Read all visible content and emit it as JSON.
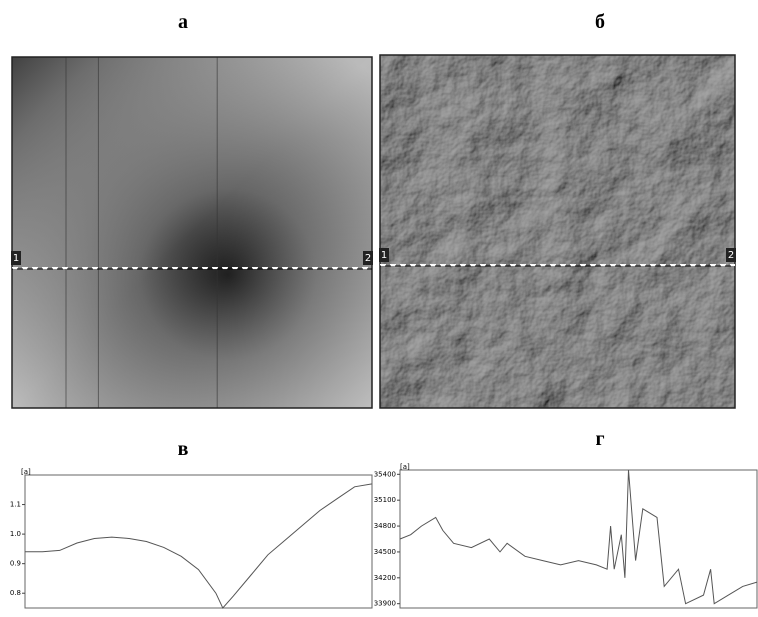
{
  "chart_data": [
    {
      "type": "image",
      "title": "а",
      "style": "height",
      "markers": [
        "1",
        "2"
      ]
    },
    {
      "type": "image",
      "title": "б",
      "style": "relief",
      "markers": [
        "1",
        "2"
      ]
    },
    {
      "type": "line",
      "title": "в",
      "corner_label": "[a]",
      "color": "#555555",
      "x": [
        0,
        5,
        10,
        15,
        20,
        25,
        30,
        35,
        40,
        45,
        50,
        55,
        57,
        60,
        65,
        70,
        75,
        80,
        85,
        90,
        95,
        100
      ],
      "values": [
        0.94,
        0.94,
        0.945,
        0.97,
        0.985,
        0.99,
        0.985,
        0.975,
        0.955,
        0.925,
        0.88,
        0.8,
        0.75,
        0.79,
        0.86,
        0.93,
        0.98,
        1.03,
        1.08,
        1.12,
        1.16,
        1.17
      ],
      "xlim": [
        0,
        100
      ],
      "ylim": [
        0.75,
        1.2
      ],
      "yticks": [
        0.8,
        0.9,
        {
          "value": 1,
          "label": "1.0"
        },
        1.1
      ]
    },
    {
      "type": "line",
      "title": "г",
      "corner_label": "[a]",
      "color": "#555555",
      "x": [
        0,
        3,
        6,
        10,
        12,
        15,
        20,
        25,
        28,
        30,
        35,
        40,
        45,
        50,
        55,
        58,
        59,
        60,
        62,
        63,
        64,
        66,
        68,
        72,
        74,
        78,
        80,
        85,
        87,
        88,
        92,
        96,
        100
      ],
      "values": [
        34650,
        34700,
        34800,
        34900,
        34750,
        34600,
        34550,
        34650,
        34500,
        34600,
        34450,
        34400,
        34350,
        34400,
        34350,
        34300,
        34800,
        34300,
        34700,
        34200,
        35450,
        34400,
        35000,
        34900,
        34100,
        34300,
        33900,
        34000,
        34300,
        33900,
        34000,
        34100,
        34150
      ],
      "xlim": [
        0,
        100
      ],
      "ylim": [
        33850,
        35450
      ],
      "yticks": [
        33900,
        34200,
        34500,
        34800,
        35100,
        35400
      ]
    }
  ]
}
